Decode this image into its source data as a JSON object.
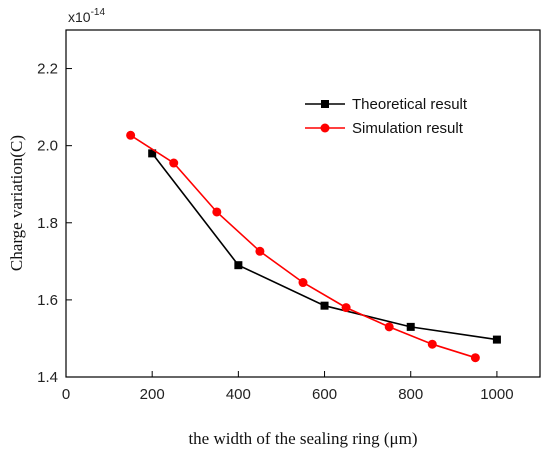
{
  "chart_data": {
    "type": "line",
    "xlabel": "the width of the sealing ring (μm)",
    "ylabel": "Charge variation(C)",
    "y_multiplier": {
      "base": "x10",
      "exponent": "-14"
    },
    "xlim": [
      0,
      1100
    ],
    "ylim": [
      1.4,
      2.3
    ],
    "xticks": [
      0,
      200,
      400,
      600,
      800,
      1000
    ],
    "xtick_labels": [
      "0",
      "200",
      "400",
      "600",
      "800",
      "1000"
    ],
    "yticks": [
      1.4,
      1.6,
      1.8,
      2.0,
      2.2
    ],
    "ytick_labels": [
      "1.4",
      "1.6",
      "1.8",
      "2.0",
      "2.2"
    ],
    "grid": false,
    "legend_position": "top-right",
    "series": [
      {
        "name": "Theoretical result",
        "color": "#000000",
        "marker": "square",
        "x": [
          200,
          400,
          600,
          800,
          1000
        ],
        "y": [
          1.98,
          1.69,
          1.585,
          1.53,
          1.497
        ]
      },
      {
        "name": "Simulation result",
        "color": "#ff0000",
        "marker": "circle",
        "x": [
          150,
          250,
          350,
          450,
          550,
          650,
          750,
          850,
          950
        ],
        "y": [
          2.027,
          1.955,
          1.828,
          1.726,
          1.645,
          1.58,
          1.53,
          1.485,
          1.45
        ]
      }
    ]
  }
}
